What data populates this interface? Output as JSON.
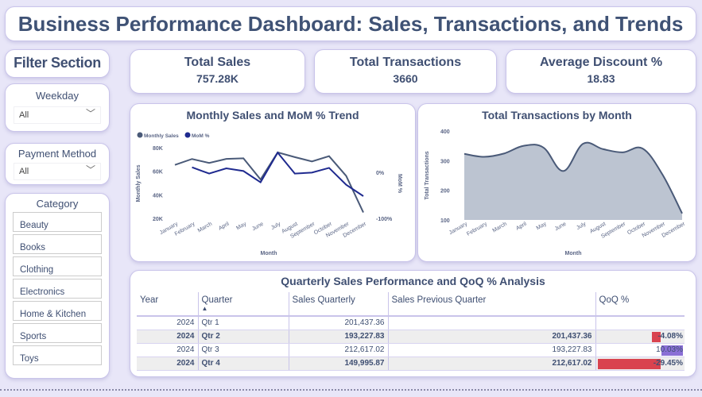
{
  "title": "Business Performance Dashboard: Sales, Transactions, and Trends",
  "filter_section": "Filter Section",
  "weekday": {
    "label": "Weekday",
    "value": "All"
  },
  "payment": {
    "label": "Payment Method",
    "value": "All"
  },
  "category": {
    "label": "Category",
    "items": [
      "Beauty",
      "Books",
      "Clothing",
      "Electronics",
      "Home & Kitchen",
      "Sports",
      "Toys"
    ]
  },
  "kpis": [
    {
      "label": "Total Sales",
      "value": "757.28K"
    },
    {
      "label": "Total Transactions",
      "value": "3660"
    },
    {
      "label": "Average Discount %",
      "value": "18.83"
    }
  ],
  "colors": {
    "sales": "#4a5a78",
    "mom": "#1f2a8f",
    "area": "#bcc4d1",
    "neg": "#d9434f",
    "pos": "#8a6fd6"
  },
  "chart_data": [
    {
      "type": "line",
      "title": "Monthly Sales and MoM % Trend",
      "xlabel": "Month",
      "ylabel": "Monthly Sales",
      "y2label": "MoM %",
      "categories": [
        "January",
        "February",
        "March",
        "April",
        "May",
        "June",
        "July",
        "August",
        "September",
        "October",
        "November",
        "December"
      ],
      "yticks": [
        "20K",
        "40K",
        "60K",
        "80K"
      ],
      "ylim": [
        20000,
        80000
      ],
      "y2ticks": [
        "-100%",
        "0%"
      ],
      "y2lim": [
        -100,
        0
      ],
      "series": [
        {
          "name": "Monthly Sales",
          "axis": "left",
          "values": [
            65400,
            70400,
            67000,
            70500,
            71000,
            53000,
            76000,
            72000,
            68300,
            72800,
            56000,
            25000
          ]
        },
        {
          "name": "MoM %",
          "axis": "right",
          "values": [
            null,
            10.8,
            -2.8,
            8.5,
            2.8,
            -21.6,
            42.6,
            -2.8,
            -0.6,
            9.6,
            -27,
            -51.7
          ]
        }
      ]
    },
    {
      "type": "area",
      "title": "Total Transactions by Month",
      "xlabel": "Month",
      "ylabel": "Total Transactions",
      "categories": [
        "January",
        "February",
        "March",
        "April",
        "May",
        "June",
        "July",
        "August",
        "September",
        "October",
        "November",
        "December"
      ],
      "yticks": [
        "100",
        "200",
        "300",
        "400"
      ],
      "ylim": [
        100,
        400
      ],
      "values": [
        323,
        313,
        324,
        350,
        344,
        265,
        357,
        339,
        328,
        341,
        254,
        122
      ]
    },
    {
      "type": "table",
      "title": "Quarterly Sales Performance and QoQ % Analysis",
      "columns": [
        "Year",
        "Quarter",
        "Sales Quarterly",
        "Sales Previous Quarter",
        "QoQ %"
      ],
      "sort_indicator": "▲",
      "rows": [
        [
          "2024",
          "Qtr 1",
          "201,437.36",
          "",
          ""
        ],
        [
          "2024",
          "Qtr 2",
          "193,227.83",
          "201,437.36",
          "-4.08%"
        ],
        [
          "2024",
          "Qtr 3",
          "212,617.02",
          "193,227.83",
          "10.03%"
        ],
        [
          "2024",
          "Qtr 4",
          "149,995.87",
          "212,617.02",
          "-29.45%"
        ]
      ],
      "qoq_values": [
        null,
        -4.08,
        10.03,
        -29.45
      ]
    }
  ]
}
